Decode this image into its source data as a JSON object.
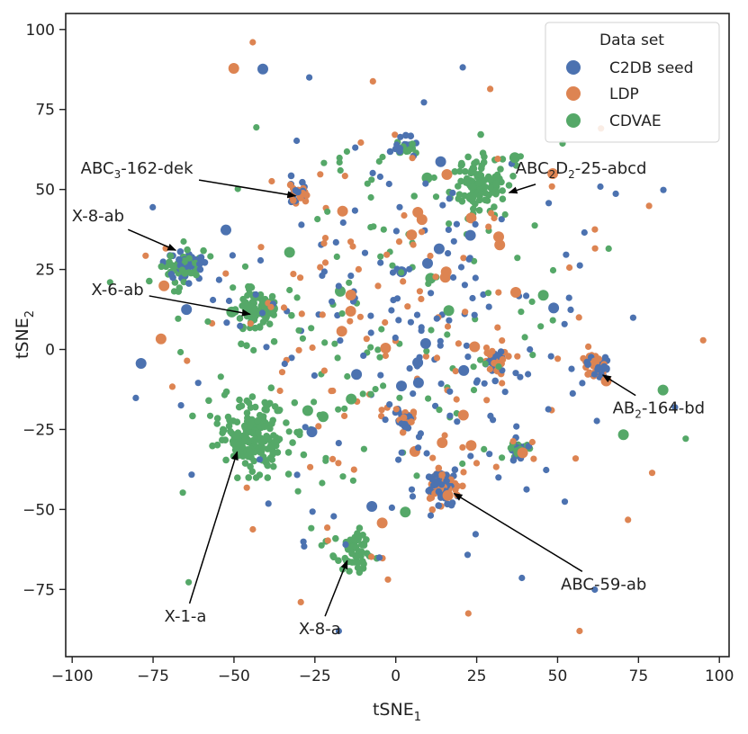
{
  "chart_data": {
    "type": "scatter",
    "title": "",
    "xlabel": {
      "base": "tSNE",
      "sub": "1"
    },
    "ylabel": {
      "base": "tSNE",
      "sub": "2"
    },
    "xlim": [
      -102,
      103
    ],
    "ylim": [
      -96,
      105
    ],
    "xticks": [
      -100,
      -75,
      -50,
      -25,
      0,
      25,
      50,
      75,
      100
    ],
    "yticks": [
      -75,
      -50,
      -25,
      0,
      25,
      50,
      75,
      100
    ],
    "grid": false,
    "legend": {
      "title": "Data set",
      "position": "top-right",
      "entries": [
        {
          "name": "C2DB seed",
          "color": "#4c72b0"
        },
        {
          "name": "LDP",
          "color": "#dd8452"
        },
        {
          "name": "CDVAE",
          "color": "#55a868"
        }
      ]
    },
    "clusters": [
      {
        "x": -44,
        "y": -27,
        "spread": 9,
        "n": 190,
        "colors": [
          "CDVAE"
        ]
      },
      {
        "x": -66,
        "y": 26,
        "spread": 5,
        "n": 80,
        "colors": [
          "CDVAE",
          "C2DB seed"
        ]
      },
      {
        "x": -44,
        "y": 12,
        "spread": 6,
        "n": 75,
        "colors": [
          "CDVAE"
        ]
      },
      {
        "x": -13,
        "y": -63,
        "spread": 5,
        "n": 60,
        "colors": [
          "CDVAE"
        ]
      },
      {
        "x": 25,
        "y": 52,
        "spread": 8,
        "n": 110,
        "colors": [
          "CDVAE"
        ]
      },
      {
        "x": 14,
        "y": -42,
        "spread": 4,
        "n": 90,
        "colors": [
          "C2DB seed",
          "LDP"
        ]
      },
      {
        "x": 62,
        "y": -5,
        "spread": 3,
        "n": 60,
        "colors": [
          "C2DB seed",
          "LDP"
        ]
      },
      {
        "x": 31,
        "y": -4,
        "spread": 3,
        "n": 40,
        "colors": [
          "C2DB seed",
          "LDP"
        ]
      },
      {
        "x": 38,
        "y": -31,
        "spread": 2.5,
        "n": 35,
        "colors": [
          "C2DB seed",
          "CDVAE"
        ]
      },
      {
        "x": -30,
        "y": 49,
        "spread": 2.5,
        "n": 35,
        "colors": [
          "C2DB seed",
          "LDP"
        ]
      },
      {
        "x": 3,
        "y": 63,
        "spread": 2.5,
        "n": 30,
        "colors": [
          "C2DB seed",
          "CDVAE"
        ]
      },
      {
        "x": 3,
        "y": -22,
        "spread": 2.5,
        "n": 30,
        "colors": [
          "C2DB seed",
          "LDP"
        ]
      },
      {
        "x": 0,
        "y": 5,
        "spread": 55,
        "n": 500,
        "colors": [
          "C2DB seed",
          "LDP",
          "CDVAE"
        ]
      }
    ],
    "annotations": [
      {
        "parts": [
          [
            "ABC",
            ""
          ],
          [
            "3",
            "sub"
          ],
          [
            "-162-dek",
            ""
          ]
        ],
        "text_x": -80,
        "text_y": 55,
        "target_x": -31,
        "target_y": 48,
        "anchor": "middle"
      },
      {
        "parts": [
          [
            "ABC",
            ""
          ],
          [
            "2",
            "sub"
          ],
          [
            "D",
            ""
          ],
          [
            "2",
            "sub"
          ],
          [
            "-25-abcd",
            ""
          ]
        ],
        "text_x": 37,
        "text_y": 55,
        "target_x": 35,
        "target_y": 49,
        "anchor": "start"
      },
      {
        "parts": [
          [
            "X-8-ab",
            ""
          ]
        ],
        "text_x": -92,
        "text_y": 40,
        "target_x": -68,
        "target_y": 31,
        "anchor": "middle"
      },
      {
        "parts": [
          [
            "X-6-ab",
            ""
          ]
        ],
        "text_x": -86,
        "text_y": 17,
        "target_x": -45,
        "target_y": 11,
        "anchor": "middle"
      },
      {
        "parts": [
          [
            "AB",
            ""
          ],
          [
            "2",
            "sub"
          ],
          [
            "-164-bd",
            ""
          ]
        ],
        "text_x": 67,
        "text_y": -20,
        "target_x": 64,
        "target_y": -8,
        "anchor": "start"
      },
      {
        "parts": [
          [
            "ABC-59-ab",
            ""
          ]
        ],
        "text_x": 51,
        "text_y": -75,
        "target_x": 18,
        "target_y": -45,
        "anchor": "start"
      },
      {
        "parts": [
          [
            "X-1-a",
            ""
          ]
        ],
        "text_x": -65,
        "text_y": -85,
        "target_x": -49,
        "target_y": -32,
        "anchor": "middle"
      },
      {
        "parts": [
          [
            "X-8-a",
            ""
          ]
        ],
        "text_x": -30,
        "text_y": -89,
        "target_x": -15,
        "target_y": -66,
        "anchor": "start"
      }
    ]
  }
}
